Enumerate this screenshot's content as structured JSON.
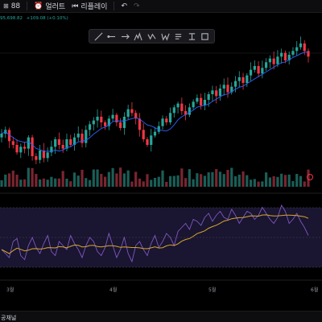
{
  "topbar": {
    "left_label": "88",
    "alert_label": "얼러트",
    "replay_label": "리플레이"
  },
  "price_info": {
    "value": "95,698.82",
    "change": "+109.08 (+0.10%)"
  },
  "drawing_tools": [
    "line",
    "hline",
    "arrow",
    "fib",
    "zigzag",
    "wave",
    "text",
    "measure",
    "rect"
  ],
  "time_axis": [
    "3월",
    "4월",
    "5월",
    "6월"
  ],
  "bottom": {
    "label": "공채널"
  },
  "colors": {
    "up": "#26a69a",
    "down": "#f23645",
    "ma": "#2962ff",
    "rsi": "#7e57c2",
    "rsi_ma": "#d4a72c",
    "rsi_band": "#1a1530"
  },
  "chart_data": {
    "type": "candlestick",
    "series": [
      {
        "name": "price",
        "values": [
          36,
          38,
          32,
          30,
          26,
          29,
          28,
          34,
          24,
          22,
          27,
          23,
          26,
          29,
          33,
          30,
          28,
          33,
          30,
          34,
          36,
          31,
          38,
          41,
          43,
          45,
          42,
          40,
          44,
          46,
          42,
          39,
          45,
          49,
          47,
          44,
          38,
          33,
          30,
          35,
          37,
          40,
          44,
          42,
          47,
          50,
          52,
          48,
          46,
          50,
          53,
          55,
          51,
          54,
          57,
          59,
          56,
          60,
          62,
          58,
          61,
          64,
          66,
          63,
          67,
          70,
          72,
          68,
          71,
          74,
          76,
          73,
          77,
          79,
          75,
          78,
          80,
          82,
          84,
          80,
          77
        ]
      },
      {
        "name": "rsi",
        "values": [
          44,
          40,
          36,
          52,
          55,
          38,
          34,
          48,
          56,
          46,
          40,
          50,
          58,
          42,
          38,
          52,
          48,
          44,
          58,
          50,
          44,
          36,
          48,
          56,
          52,
          42,
          38,
          46,
          60,
          48,
          36,
          44,
          56,
          40,
          32,
          48,
          52,
          44,
          38,
          50,
          58,
          46,
          52,
          60,
          56,
          48,
          62,
          66,
          70,
          64,
          74,
          72,
          68,
          76,
          80,
          72,
          78,
          82,
          76,
          74,
          84,
          78,
          70,
          76,
          82,
          80,
          74,
          78,
          86,
          80,
          74,
          70,
          76,
          88,
          82,
          70,
          74,
          80,
          72,
          66,
          58
        ]
      }
    ]
  }
}
